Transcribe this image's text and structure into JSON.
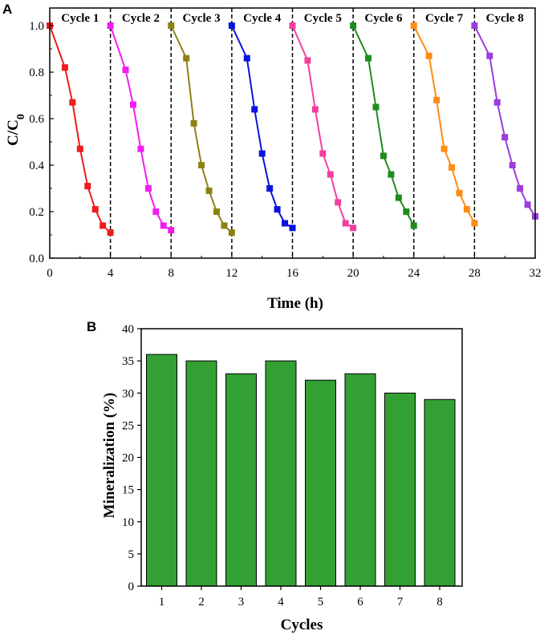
{
  "chart_data": [
    {
      "panel": "A",
      "type": "line",
      "xlabel": "Time (h)",
      "ylabel": "C/C",
      "ylabel_subscript": "0",
      "xlim": [
        0,
        32
      ],
      "ylim": [
        0,
        1.05
      ],
      "xticks": [
        "0",
        "4",
        "8",
        "12",
        "16",
        "20",
        "24",
        "28",
        "32"
      ],
      "yticks": [
        "0.0",
        "0.2",
        "0.4",
        "0.6",
        "0.8",
        "1.0"
      ],
      "dividers": [
        4,
        8,
        12,
        16,
        20,
        24,
        28
      ],
      "series": [
        {
          "name": "Cycle 1",
          "color": "#ee1c1c",
          "x": [
            0,
            1,
            1.5,
            2,
            2.5,
            3,
            3.5,
            4
          ],
          "y": [
            1.0,
            0.82,
            0.67,
            0.47,
            0.31,
            0.21,
            0.14,
            0.11
          ]
        },
        {
          "name": "Cycle 2",
          "color": "#f01ef0",
          "x": [
            4,
            5,
            5.5,
            6,
            6.5,
            7,
            7.5,
            8
          ],
          "y": [
            1.0,
            0.81,
            0.66,
            0.47,
            0.3,
            0.2,
            0.14,
            0.12
          ]
        },
        {
          "name": "Cycle 3",
          "color": "#8c8214",
          "x": [
            8,
            9,
            9.5,
            10,
            10.5,
            11,
            11.5,
            12
          ],
          "y": [
            1.0,
            0.86,
            0.58,
            0.4,
            0.29,
            0.2,
            0.14,
            0.11
          ]
        },
        {
          "name": "Cycle 4",
          "color": "#0a14dc",
          "x": [
            12,
            13,
            13.5,
            14,
            14.5,
            15,
            15.5,
            16
          ],
          "y": [
            1.0,
            0.86,
            0.64,
            0.45,
            0.3,
            0.21,
            0.15,
            0.13
          ]
        },
        {
          "name": "Cycle 5",
          "color": "#f2409e",
          "x": [
            16,
            17,
            17.5,
            18,
            18.5,
            19,
            19.5,
            20
          ],
          "y": [
            1.0,
            0.85,
            0.64,
            0.45,
            0.36,
            0.24,
            0.15,
            0.13
          ]
        },
        {
          "name": "Cycle 6",
          "color": "#1e8c1e",
          "x": [
            20,
            21,
            21.5,
            22,
            22.5,
            23,
            23.5,
            24
          ],
          "y": [
            1.0,
            0.86,
            0.65,
            0.44,
            0.36,
            0.26,
            0.2,
            0.14
          ]
        },
        {
          "name": "Cycle 7",
          "color": "#ff8c14",
          "x": [
            24,
            25,
            25.5,
            26,
            26.5,
            27,
            27.5,
            28
          ],
          "y": [
            1.0,
            0.87,
            0.68,
            0.47,
            0.39,
            0.28,
            0.21,
            0.15
          ]
        },
        {
          "name": "Cycle 8",
          "color": "#9b3cdc",
          "x": [
            28,
            29,
            29.5,
            30,
            30.5,
            31,
            31.5,
            32
          ],
          "y": [
            1.0,
            0.87,
            0.67,
            0.52,
            0.4,
            0.3,
            0.23,
            0.18
          ]
        }
      ]
    },
    {
      "panel": "B",
      "type": "bar",
      "xlabel": "Cycles",
      "ylabel": "Mineralization (%)",
      "categories": [
        "1",
        "2",
        "3",
        "4",
        "5",
        "6",
        "7",
        "8"
      ],
      "values": [
        36,
        35,
        33,
        35,
        32,
        33,
        30,
        29
      ],
      "ylim": [
        0,
        40
      ],
      "yticks": [
        "0",
        "5",
        "10",
        "15",
        "20",
        "25",
        "30",
        "35",
        "40"
      ],
      "bar_color": "#33a033"
    }
  ]
}
